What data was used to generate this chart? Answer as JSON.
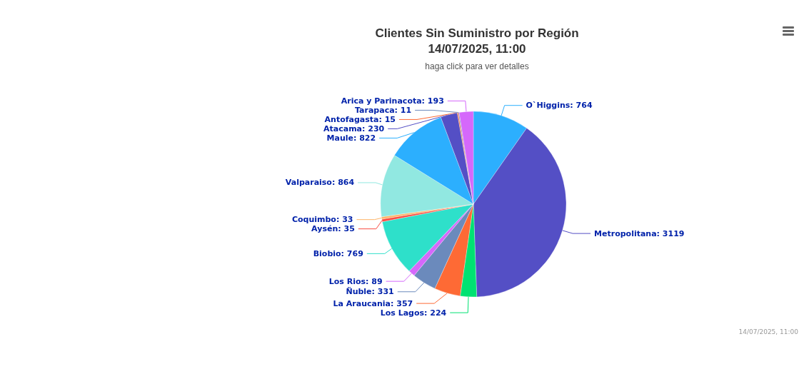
{
  "chart_data": {
    "type": "pie",
    "title": "Clientes Sin Suministro por Región\n14/07/2025, 11:00",
    "subtitle": "haga click para ver detalles",
    "categories": [
      "O`Higgins",
      "Metropolitana",
      "Los Lagos",
      "La Araucania",
      "Ñuble",
      "Los Rios",
      "Biobio",
      "Aysén",
      "Coquimbo",
      "Valparaiso",
      "Maule",
      "Atacama",
      "Antofagasta",
      "Tarapaca",
      "Arica y Parinacota"
    ],
    "value_labels": [
      "764",
      "3119",
      "224",
      "357",
      "331",
      "89",
      "769",
      "35",
      "33",
      "864",
      "822",
      "230",
      "15",
      "11",
      "193"
    ],
    "values": [
      764,
      3119,
      224,
      357,
      331,
      89,
      769,
      35,
      33,
      864,
      822,
      230,
      15,
      11,
      193
    ],
    "colors": [
      "#2caffe",
      "#544fc5",
      "#00e272",
      "#fe6a35",
      "#6b8abc",
      "#d568fb",
      "#2ee0ca",
      "#fa4b42",
      "#feb56a",
      "#91e8e1",
      "#2caffe",
      "#544fc5",
      "#fe6a35",
      "#6b8abc",
      "#d568fb"
    ],
    "legend": false,
    "annotations": [
      "14/07/2025, 11:00"
    ]
  }
}
